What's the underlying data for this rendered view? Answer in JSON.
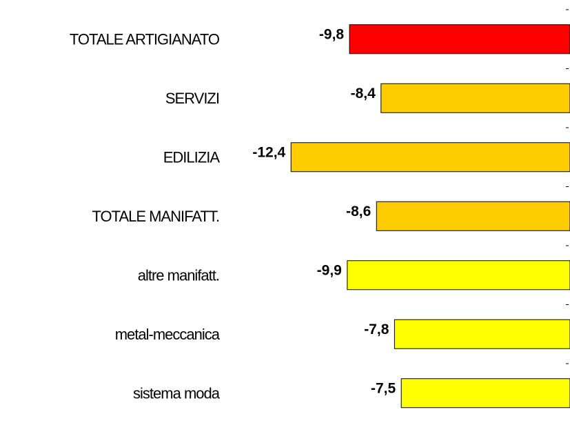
{
  "chart_data": {
    "type": "barh",
    "categories": [
      "TOTALE ARTIGIANATO",
      "SERVIZI",
      "EDILIZIA",
      "TOTALE MANIFATT.",
      "altre manifatt.",
      "metal-meccanica",
      "sistema moda"
    ],
    "values": [
      -9.8,
      -8.4,
      -12.4,
      -8.6,
      -9.9,
      -7.8,
      -7.5
    ],
    "value_labels": [
      "-9,8",
      "-8,4",
      "-12,4",
      "-8,6",
      "-9,9",
      "-7,8",
      "-7,5"
    ],
    "colors": [
      "#ff0000",
      "#ffcc00",
      "#ffcc00",
      "#ffcc00",
      "#ffff00",
      "#ffff00",
      "#ffff00"
    ],
    "xlim": [
      -14,
      0
    ]
  }
}
